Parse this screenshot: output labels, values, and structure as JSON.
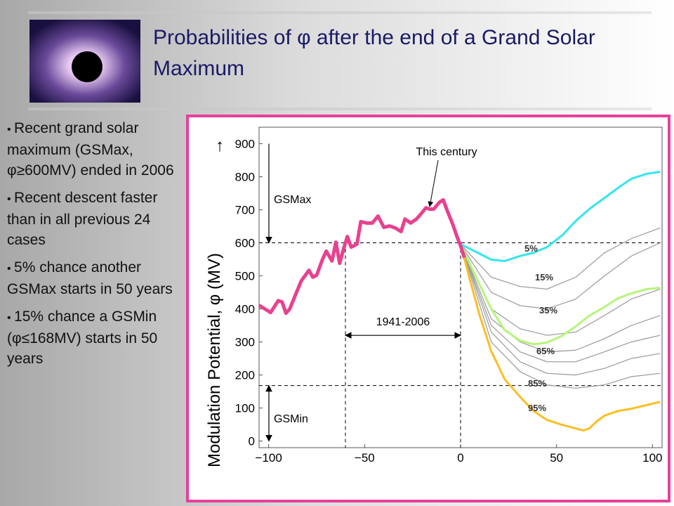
{
  "header": {
    "title": "Probabilities of φ after the end of a Grand Solar Maximum"
  },
  "bullets": [
    "Recent grand solar maximum (GSMax, φ≥600MV) ended in 2006",
    "Recent descent faster than in all previous 24 cases",
    "5% chance another GSMax starts in 50 years",
    "15% chance a GSMin (φ≤168MV) starts in 50 years"
  ],
  "chart_data": {
    "type": "line",
    "ylabel": "Modulation Potential, φ (MV)",
    "ylabel_arrow": "↑",
    "xlim": [
      -105,
      105
    ],
    "ylim": [
      -20,
      950
    ],
    "xticks": [
      {
        "value": -100,
        "label": "−100"
      },
      {
        "value": -50,
        "label": "−50"
      },
      0,
      50,
      100
    ],
    "yticks": [
      0,
      100,
      200,
      300,
      400,
      500,
      600,
      700,
      800,
      900
    ],
    "hlines": [
      600,
      168
    ],
    "vlines": [
      -60,
      0
    ],
    "gsmax": {
      "label": "GSMax",
      "from": 900,
      "to": 600
    },
    "gsmin": {
      "label": "GSMin",
      "from": 168,
      "to": 0
    },
    "span": {
      "label": "1941-2006",
      "from": -60,
      "to": 0,
      "y": 320
    },
    "annotation": "This century",
    "series": [
      {
        "color": "#a0a0a0",
        "x": [
          0,
          16,
          31,
          45,
          60,
          75,
          89,
          104
        ],
        "values": [
          596,
          450,
          410,
          400,
          430,
          500,
          560,
          600
        ]
      },
      {
        "color": "#a0a0a0",
        "x": [
          0,
          16,
          31,
          45,
          60,
          75,
          89,
          104
        ],
        "values": [
          596,
          400,
          340,
          320,
          330,
          380,
          430,
          460
        ]
      },
      {
        "color": "#a0a0a0",
        "x": [
          0,
          16,
          31,
          45,
          60,
          75,
          89,
          104
        ],
        "values": [
          596,
          370,
          300,
          270,
          275,
          310,
          350,
          380
        ]
      },
      {
        "color": "#a0a0a0",
        "x": [
          0,
          16,
          31,
          45,
          60,
          75,
          89,
          104
        ],
        "values": [
          596,
          330,
          240,
          205,
          200,
          220,
          250,
          265
        ]
      },
      {
        "name": "15%",
        "color": "#a0a0a0",
        "x": [
          0,
          16,
          31,
          45,
          60,
          75,
          89,
          104
        ],
        "values": [
          596,
          496,
          468,
          460,
          496,
          570,
          613,
          645
        ]
      },
      {
        "name": "65%",
        "color": "#a0a0a0",
        "x": [
          0,
          16,
          31,
          45,
          60,
          75,
          89,
          104
        ],
        "values": [
          596,
          350,
          270,
          240,
          240,
          270,
          300,
          320
        ]
      },
      {
        "name": "85%",
        "color": "#a0a0a0",
        "x": [
          0,
          16,
          31,
          45,
          60,
          75,
          89,
          104
        ],
        "values": [
          596,
          300,
          210,
          170,
          160,
          170,
          195,
          205
        ]
      },
      {
        "name": "35%",
        "color": "#b6f57a",
        "x": [
          0,
          9,
          16,
          23,
          31,
          38,
          45,
          53,
          60,
          67,
          75,
          82,
          89,
          97,
          104
        ],
        "values": [
          596,
          485,
          400,
          336,
          304,
          293,
          298,
          319,
          347,
          379,
          406,
          432,
          447,
          460,
          464
        ]
      },
      {
        "name": "5%",
        "color": "#33e6f0",
        "x": [
          0,
          9,
          16,
          23,
          31,
          38,
          45,
          53,
          60,
          67,
          75,
          82,
          89,
          97,
          104
        ],
        "values": [
          596,
          570,
          549,
          545,
          560,
          570,
          587,
          623,
          666,
          702,
          736,
          766,
          794,
          809,
          815
        ]
      },
      {
        "name": "95%",
        "color": "#fbbf24",
        "x": [
          0,
          5,
          10,
          16,
          23,
          31,
          38,
          45,
          53,
          60,
          64,
          67,
          71,
          75,
          82,
          89,
          97,
          104
        ],
        "values": [
          596,
          485,
          379,
          272,
          187,
          134,
          91,
          64,
          49,
          38,
          32,
          38,
          60,
          77,
          91,
          98,
          109,
          119
        ]
      },
      {
        "color": "#e8418f",
        "x": [
          -105,
          -102,
          -99,
          -95,
          -93,
          -91,
          -89,
          -86,
          -83,
          -79,
          -77,
          -75,
          -72,
          -70,
          -67,
          -65,
          -63,
          -61,
          -59,
          -57,
          -54,
          -52,
          -49,
          -46,
          -43,
          -40,
          -37,
          -34,
          -31,
          -29,
          -26,
          -23,
          -21,
          -18,
          -16,
          -14,
          -11,
          -9,
          -7,
          -4,
          -2,
          0,
          2
        ],
        "values": [
          411,
          400,
          389,
          425,
          421,
          387,
          400,
          443,
          485,
          517,
          496,
          502,
          549,
          575,
          545,
          602,
          538,
          581,
          619,
          587,
          596,
          664,
          660,
          660,
          681,
          647,
          651,
          645,
          634,
          672,
          660,
          672,
          685,
          706,
          702,
          702,
          723,
          730,
          698,
          655,
          621,
          591,
          555
        ]
      }
    ]
  }
}
